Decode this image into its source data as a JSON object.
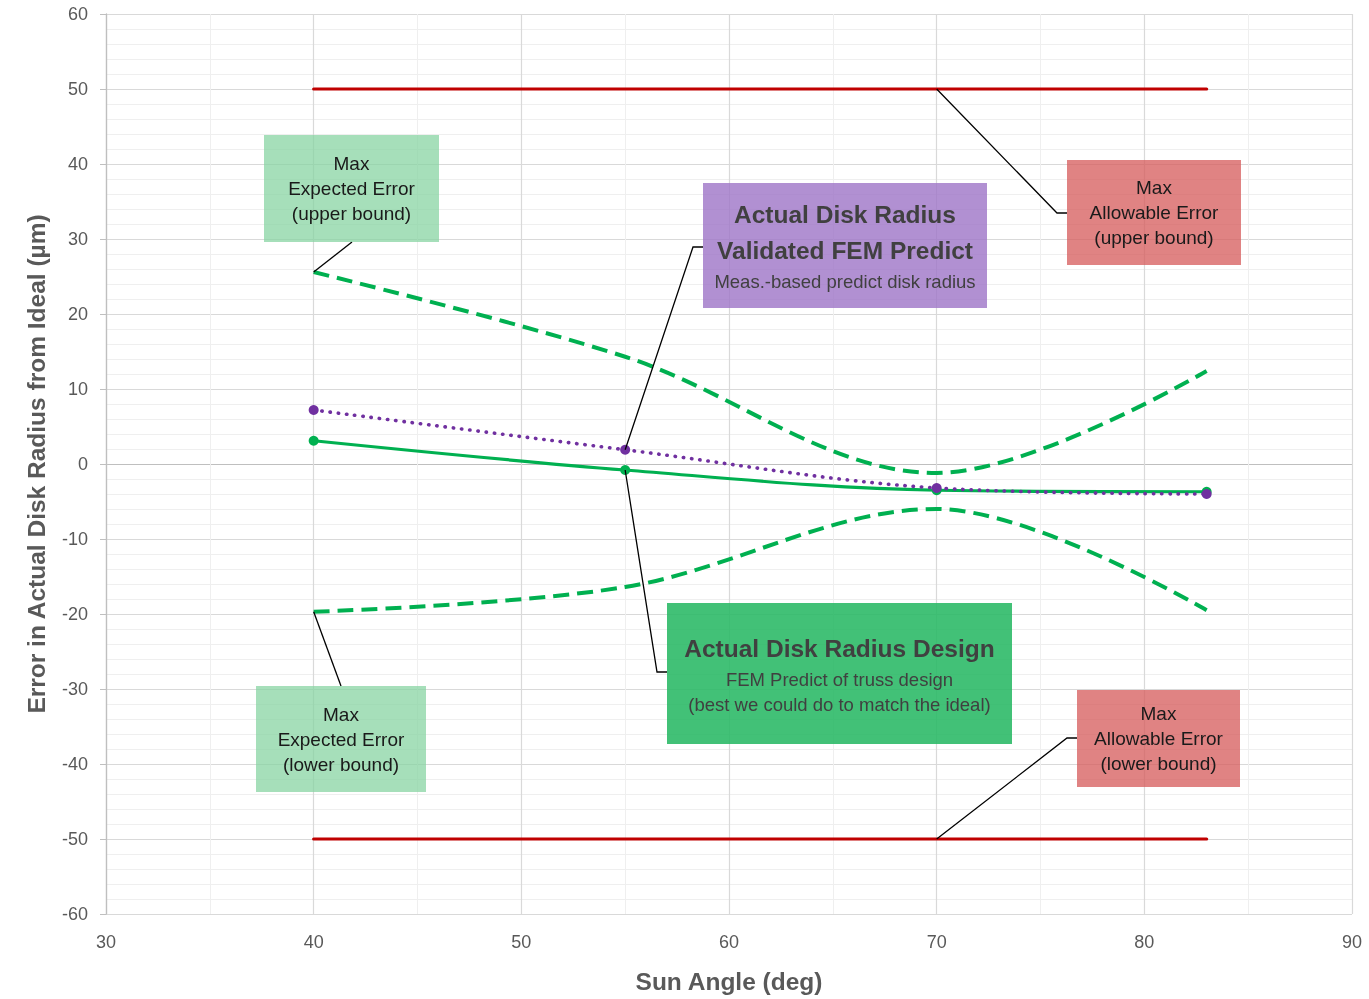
{
  "chart_data": {
    "type": "line",
    "xlabel": "Sun Angle (deg)",
    "ylabel": "Error in Actual Disk Radius from Ideal (µm)",
    "x": [
      40,
      55,
      70,
      83
    ],
    "xlim": [
      30,
      90
    ],
    "xticks": [
      30,
      40,
      50,
      60,
      70,
      80,
      90
    ],
    "ylim": [
      -60,
      60
    ],
    "yticks": [
      -60,
      -50,
      -40,
      -30,
      -20,
      -10,
      0,
      10,
      20,
      30,
      40,
      50,
      60
    ],
    "grid": true,
    "series": [
      {
        "color": "#c00000",
        "values": [
          50,
          50,
          50,
          50
        ],
        "line_style": "solid",
        "marker": "none"
      },
      {
        "color": "#c00000",
        "values": [
          -50,
          -50,
          -50,
          -50
        ],
        "line_style": "solid",
        "marker": "none"
      },
      {
        "color": "#00b050",
        "values": [
          25.6,
          14.3,
          -1.2,
          12.4
        ],
        "line_style": "dashed",
        "marker": "none"
      },
      {
        "color": "#00b050",
        "values": [
          -19.7,
          -16.4,
          -6.0,
          -19.5
        ],
        "line_style": "dashed",
        "marker": "none"
      },
      {
        "color": "#00b050",
        "values": [
          3.1,
          -0.8,
          -3.5,
          -3.7
        ],
        "line_style": "solid",
        "marker": "circle"
      },
      {
        "color": "#7030a0",
        "values": [
          7.2,
          1.9,
          -3.2,
          -4.0
        ],
        "line_style": "dotted",
        "marker": "circle"
      }
    ],
    "annotations": [
      {
        "text": "Max\nExpected Error\n(upper bound)",
        "x": 40,
        "y": 25.6
      },
      {
        "text": "Max\nExpected Error\n(lower bound)",
        "x": 40,
        "y": -19.7
      },
      {
        "text": "Max\nAllowable Error\n(upper bound)",
        "x": 70,
        "y": 50
      },
      {
        "text": "Max\nAllowable Error\n(lower bound)",
        "x": 70,
        "y": -50
      },
      {
        "text": "Actual Disk Radius\nValidated FEM Predict\nMeas.-based predict disk radius",
        "x": 55,
        "y": 1.9
      },
      {
        "text": "Actual Disk Radius Design\nFEM Predict of truss design\n(best we could do to match the ideal)",
        "x": 55,
        "y": -0.8
      }
    ]
  }
}
